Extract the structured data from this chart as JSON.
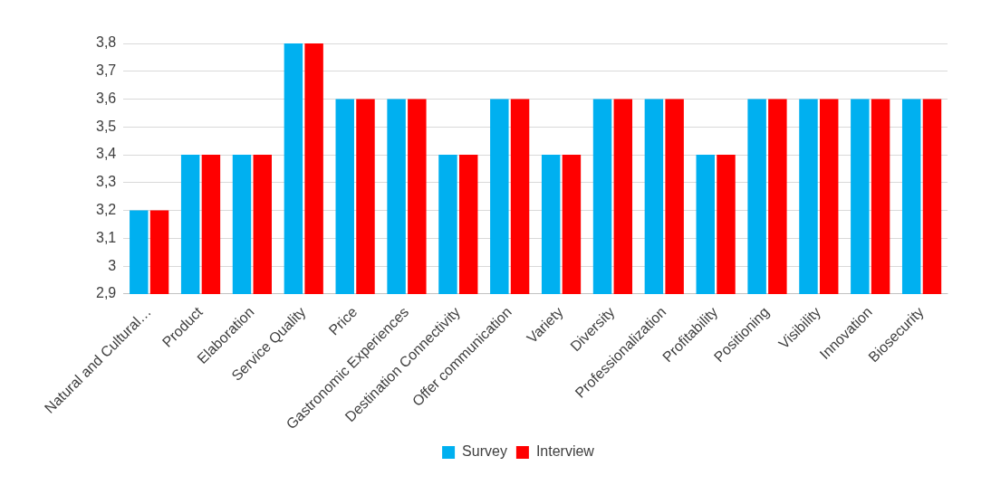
{
  "chart_data": {
    "type": "bar",
    "categories": [
      "Natural and Cultural…",
      "Product",
      "Elaboration",
      "Service Quality",
      "Price",
      "Gastronomic Experiences",
      "Destination Connectivity",
      "Offer communication",
      "Variety",
      "Diversity",
      "Professionalization",
      "Profitability",
      "Positioning",
      "Visibility",
      "Innovation",
      "Biosecurity"
    ],
    "series": [
      {
        "name": "Survey",
        "color": "#00b0f0",
        "values": [
          3.2,
          3.4,
          3.4,
          3.8,
          3.6,
          3.6,
          3.4,
          3.6,
          3.4,
          3.6,
          3.6,
          3.4,
          3.6,
          3.6,
          3.6,
          3.6
        ]
      },
      {
        "name": "Interview",
        "color": "#ff0000",
        "values": [
          3.2,
          3.4,
          3.4,
          3.8,
          3.6,
          3.6,
          3.4,
          3.6,
          3.4,
          3.6,
          3.6,
          3.4,
          3.6,
          3.6,
          3.6,
          3.6
        ]
      }
    ],
    "ylim": [
      2.9,
      3.8
    ],
    "yticks": [
      {
        "value": 2.9,
        "label": "2,9"
      },
      {
        "value": 3,
        "label": "3"
      },
      {
        "value": 3.1,
        "label": "3,1"
      },
      {
        "value": 3.2,
        "label": "3,2"
      },
      {
        "value": 3.3,
        "label": "3,3"
      },
      {
        "value": 3.4,
        "label": "3,4"
      },
      {
        "value": 3.5,
        "label": "3,5"
      },
      {
        "value": 3.6,
        "label": "3,6"
      },
      {
        "value": 3.7,
        "label": "3,7"
      },
      {
        "value": 3.8,
        "label": "3,8"
      }
    ],
    "grid": "y",
    "legend": "bottom"
  }
}
